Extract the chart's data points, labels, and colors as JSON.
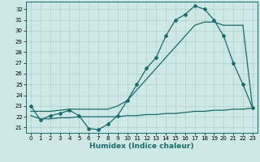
{
  "xlabel": "Humidex (Indice chaleur)",
  "xlim": [
    -0.5,
    23.5
  ],
  "ylim": [
    20.5,
    32.7
  ],
  "yticks": [
    21,
    22,
    23,
    24,
    25,
    26,
    27,
    28,
    29,
    30,
    31,
    32
  ],
  "xticks": [
    0,
    1,
    2,
    3,
    4,
    5,
    6,
    7,
    8,
    9,
    10,
    11,
    12,
    13,
    14,
    15,
    16,
    17,
    18,
    19,
    20,
    21,
    22,
    23
  ],
  "bg_color": "#cde8e5",
  "grid_color": "#a8ccc9",
  "line_color": "#1a6b6b",
  "line1_x": [
    0,
    1,
    2,
    3,
    4,
    5,
    6,
    7,
    8,
    9,
    10,
    11,
    12,
    13,
    14,
    15,
    16,
    17,
    18,
    19,
    20,
    21,
    22,
    23
  ],
  "line1_y": [
    23.0,
    21.7,
    22.1,
    22.3,
    22.6,
    22.1,
    20.9,
    20.8,
    21.3,
    22.1,
    23.5,
    25.0,
    26.5,
    27.5,
    29.5,
    31.0,
    31.5,
    32.3,
    32.0,
    31.0,
    29.5,
    27.0,
    25.0,
    22.8
  ],
  "line2_x": [
    0,
    1,
    2,
    3,
    4,
    5,
    6,
    7,
    8,
    9,
    10,
    11,
    12,
    13,
    14,
    15,
    16,
    17,
    18,
    19,
    20,
    21,
    22,
    23
  ],
  "line2_y": [
    22.1,
    21.8,
    21.8,
    21.9,
    21.9,
    22.0,
    22.0,
    22.0,
    22.0,
    22.0,
    22.1,
    22.1,
    22.2,
    22.2,
    22.3,
    22.3,
    22.4,
    22.5,
    22.5,
    22.6,
    22.6,
    22.7,
    22.7,
    22.8
  ],
  "line3_x": [
    0,
    1,
    2,
    3,
    4,
    5,
    6,
    7,
    8,
    9,
    10,
    11,
    12,
    13,
    14,
    15,
    16,
    17,
    18,
    19,
    20,
    21,
    22,
    23
  ],
  "line3_y": [
    22.5,
    22.5,
    22.5,
    22.6,
    22.7,
    22.7,
    22.7,
    22.7,
    22.7,
    23.0,
    23.5,
    24.5,
    25.5,
    26.5,
    27.5,
    28.5,
    29.5,
    30.5,
    30.8,
    30.8,
    30.5,
    30.5,
    30.5,
    22.8
  ],
  "marker": "D",
  "marker_size": 2.0,
  "linewidth": 0.9,
  "tick_fontsize": 5.0,
  "xlabel_fontsize": 6.5,
  "xlabel_fontweight": "bold"
}
